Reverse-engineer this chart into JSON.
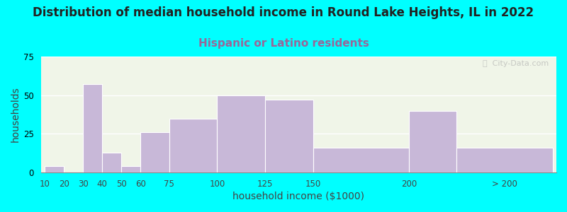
{
  "title": "Distribution of median household income in Round Lake Heights, IL in 2022",
  "subtitle": "Hispanic or Latino residents",
  "xlabel": "household income ($1000)",
  "ylabel": "households",
  "tick_labels": [
    "10",
    "20",
    "30",
    "40",
    "50",
    "60",
    "75",
    "100",
    "125",
    "150",
    "200",
    "> 200"
  ],
  "bar_values": [
    4,
    0,
    57,
    13,
    4,
    26,
    35,
    50,
    47,
    16,
    40,
    16
  ],
  "bar_left_edges": [
    10,
    20,
    30,
    40,
    50,
    60,
    75,
    100,
    125,
    150,
    200,
    225
  ],
  "bar_widths": [
    10,
    10,
    10,
    10,
    10,
    15,
    25,
    25,
    25,
    50,
    25,
    50
  ],
  "bar_color": "#c8b8d8",
  "bar_edge_color": "#ffffff",
  "ylim": [
    0,
    75
  ],
  "yticks": [
    0,
    25,
    50,
    75
  ],
  "background_color": "#00ffff",
  "plot_bg_color": "#f0f5e8",
  "title_fontsize": 12,
  "subtitle_fontsize": 11,
  "subtitle_color": "#996699",
  "axis_label_fontsize": 10,
  "tick_fontsize": 8.5,
  "watermark_text": "ⓘ  City-Data.com"
}
